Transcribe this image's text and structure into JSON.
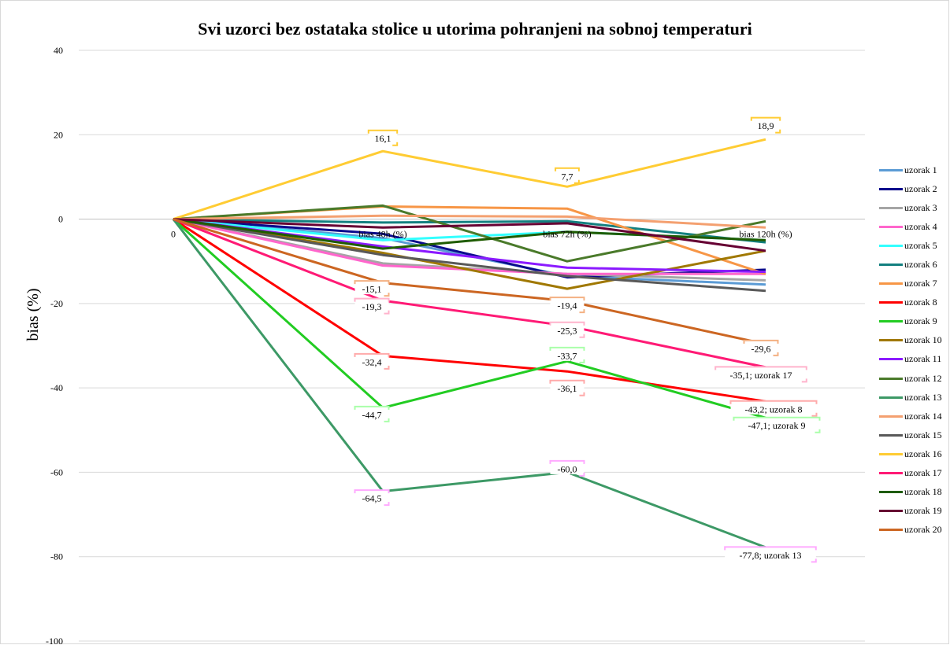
{
  "chart_data": {
    "type": "line",
    "title": "Svi uzorci bez ostataka stolice u utorima pohranjeni na sobnoj temperaturi",
    "ylabel": "bias (%)",
    "xlabel": "",
    "categories": [
      "0",
      "bias 48h (%)",
      "bias 72h (%)",
      "bias 120h (%)"
    ],
    "ylim": [
      -100,
      40
    ],
    "yticks": [
      40,
      20,
      0,
      -20,
      -40,
      -60,
      -80,
      -100
    ],
    "grid": "horizontal",
    "legend_position": "right",
    "series": [
      {
        "name": "uzorak 1",
        "color": "#5b9bd5",
        "values": [
          0,
          -4.5,
          -13.5,
          -15.5
        ]
      },
      {
        "name": "uzorak 2",
        "color": "#0a0a8c",
        "values": [
          0,
          -3.5,
          -13.8,
          -12.0
        ]
      },
      {
        "name": "uzorak 3",
        "color": "#a5a5a5",
        "values": [
          0,
          -10.5,
          -13.0,
          -14.5
        ]
      },
      {
        "name": "uzorak 4",
        "color": "#ff66cc",
        "values": [
          0,
          -11.0,
          -13.0,
          -13.0
        ]
      },
      {
        "name": "uzorak 5",
        "color": "#33ffff",
        "values": [
          0,
          -5.0,
          -3.0,
          -5.0
        ]
      },
      {
        "name": "uzorak 6",
        "color": "#138080",
        "values": [
          0,
          -0.8,
          -0.5,
          -5.5
        ]
      },
      {
        "name": "uzorak 7",
        "color": "#f79646",
        "values": [
          0,
          3.0,
          2.5,
          -13.0
        ]
      },
      {
        "name": "uzorak 8",
        "color": "#ff0000",
        "values": [
          0,
          -32.4,
          -36.1,
          -43.2
        ]
      },
      {
        "name": "uzorak 9",
        "color": "#22cc22",
        "values": [
          0,
          -44.7,
          -33.7,
          -47.1
        ]
      },
      {
        "name": "uzorak 10",
        "color": "#a07800",
        "values": [
          0,
          -8.0,
          -16.5,
          -7.5
        ]
      },
      {
        "name": "uzorak 11",
        "color": "#8b1aff",
        "values": [
          0,
          -6.5,
          -11.5,
          -12.5
        ]
      },
      {
        "name": "uzorak 12",
        "color": "#4a7a2a",
        "values": [
          0,
          3.2,
          -10.0,
          -0.5
        ]
      },
      {
        "name": "uzorak 13",
        "color": "#3d9966",
        "values": [
          0,
          -64.5,
          -60.0,
          -77.8
        ]
      },
      {
        "name": "uzorak 14",
        "color": "#f4a070",
        "values": [
          0,
          0.8,
          0.6,
          -2.0
        ]
      },
      {
        "name": "uzorak 15",
        "color": "#595959",
        "values": [
          0,
          -8.5,
          -13.5,
          -17.0
        ]
      },
      {
        "name": "uzorak 16",
        "color": "#ffcc33",
        "values": [
          0,
          16.1,
          7.7,
          18.9
        ]
      },
      {
        "name": "uzorak 17",
        "color": "#ff1a75",
        "values": [
          0,
          -19.3,
          -25.3,
          -35.1
        ]
      },
      {
        "name": "uzorak 18",
        "color": "#1f5c00",
        "values": [
          0,
          -7.0,
          -3.0,
          -5.0
        ]
      },
      {
        "name": "uzorak 19",
        "color": "#660033",
        "values": [
          0,
          -2.0,
          -1.0,
          -7.5
        ]
      },
      {
        "name": "uzorak 20",
        "color": "#cc6622",
        "values": [
          0,
          -15.1,
          -19.4,
          -29.6
        ]
      }
    ],
    "data_labels": [
      {
        "series": "uzorak 16",
        "point": 1,
        "text": "16,1",
        "color": "#ffcc33"
      },
      {
        "series": "uzorak 16",
        "point": 2,
        "text": "7,7",
        "color": "#ffcc33"
      },
      {
        "series": "uzorak 16",
        "point": 3,
        "text": "18,9",
        "color": "#ffcc33"
      },
      {
        "series": "uzorak 20",
        "point": 1,
        "text": "-15,1",
        "color": "#f4b183"
      },
      {
        "series": "uzorak 20",
        "point": 2,
        "text": "-19,4",
        "color": "#f4b183"
      },
      {
        "series": "uzorak 20",
        "point": 3,
        "text": "-29,6",
        "color": "#f4b183"
      },
      {
        "series": "uzorak 17",
        "point": 1,
        "text": "-19,3",
        "color": "#ffb3cc"
      },
      {
        "series": "uzorak 17",
        "point": 2,
        "text": "-25,3",
        "color": "#ffb3cc"
      },
      {
        "series": "uzorak 17",
        "point": 3,
        "text": "-35,1; uzorak 17",
        "color": "#ffb3cc"
      },
      {
        "series": "uzorak 8",
        "point": 1,
        "text": "-32,4",
        "color": "#ffaaaa"
      },
      {
        "series": "uzorak 8",
        "point": 2,
        "text": "-36,1",
        "color": "#ffaaaa"
      },
      {
        "series": "uzorak 8",
        "point": 3,
        "text": "-43,2; uzorak 8",
        "color": "#ffaaaa"
      },
      {
        "series": "uzorak 9",
        "point": 1,
        "text": "-44,7",
        "color": "#aaffaa"
      },
      {
        "series": "uzorak 9",
        "point": 2,
        "text": "-33,7",
        "color": "#aaffaa"
      },
      {
        "series": "uzorak 9",
        "point": 3,
        "text": "-47,1; uzorak 9",
        "color": "#aaffaa"
      },
      {
        "series": "uzorak 13",
        "point": 1,
        "text": "-64,5",
        "color": "#ffaaff"
      },
      {
        "series": "uzorak 13",
        "point": 2,
        "text": "-60,0",
        "color": "#ffaaff"
      },
      {
        "series": "uzorak 13",
        "point": 3,
        "text": "-77,8; uzorak 13",
        "color": "#ffaaff"
      }
    ]
  }
}
